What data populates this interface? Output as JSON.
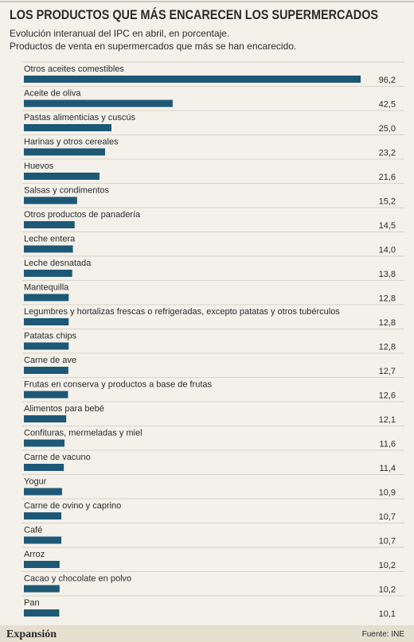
{
  "chart_data": {
    "type": "barh",
    "title": "LOS PRODUCTOS QUE MÁS ENCARECEN LOS SUPERMERCADOS",
    "subtitle": [
      "Evolución interanual del IPC en abril, en porcentaje.",
      "Productos de venta en supermercados que más se han encarecido."
    ],
    "categories": [
      "Otros aceites comestibles",
      "Aceite de oliva",
      "Pastas alimenticias y cuscús",
      "Harinas y otros cereales",
      "Huevos",
      "Salsas y condimentos",
      "Otros productos de panadería",
      "Leche entera",
      "Leche desnatada",
      "Mantequilla",
      "Legumbres y hortalizas frescas o refrigeradas, excepto patatas y otros tubérculos",
      "Patatas chips",
      "Carne de ave",
      "Frutas en conserva y productos a base de frutas",
      "Alimentos para bebé",
      "Confituras, mermeladas y miel",
      "Carne de vacuno",
      "Yogur",
      "Carne de ovino y caprino",
      "Café",
      "Arroz",
      "Cacao y chocolate en polvo",
      "Pan"
    ],
    "values": [
      96.2,
      42.5,
      25.0,
      23.2,
      21.6,
      15.2,
      14.5,
      14.0,
      13.8,
      12.8,
      12.8,
      12.8,
      12.7,
      12.6,
      12.1,
      11.6,
      11.4,
      10.9,
      10.7,
      10.7,
      10.2,
      10.2,
      10.1
    ],
    "value_labels": [
      "96,2",
      "42,5",
      "25,0",
      "23,2",
      "21,6",
      "15,2",
      "14,5",
      "14,0",
      "13,8",
      "12,8",
      "12,8",
      "12,8",
      "12,7",
      "12,6",
      "12,1",
      "11,6",
      "11,4",
      "10,9",
      "10,7",
      "10,7",
      "10,2",
      "10,2",
      "10,1"
    ],
    "color": "#1d5876",
    "brand": "Expansión",
    "source": "Fuente: INE"
  }
}
